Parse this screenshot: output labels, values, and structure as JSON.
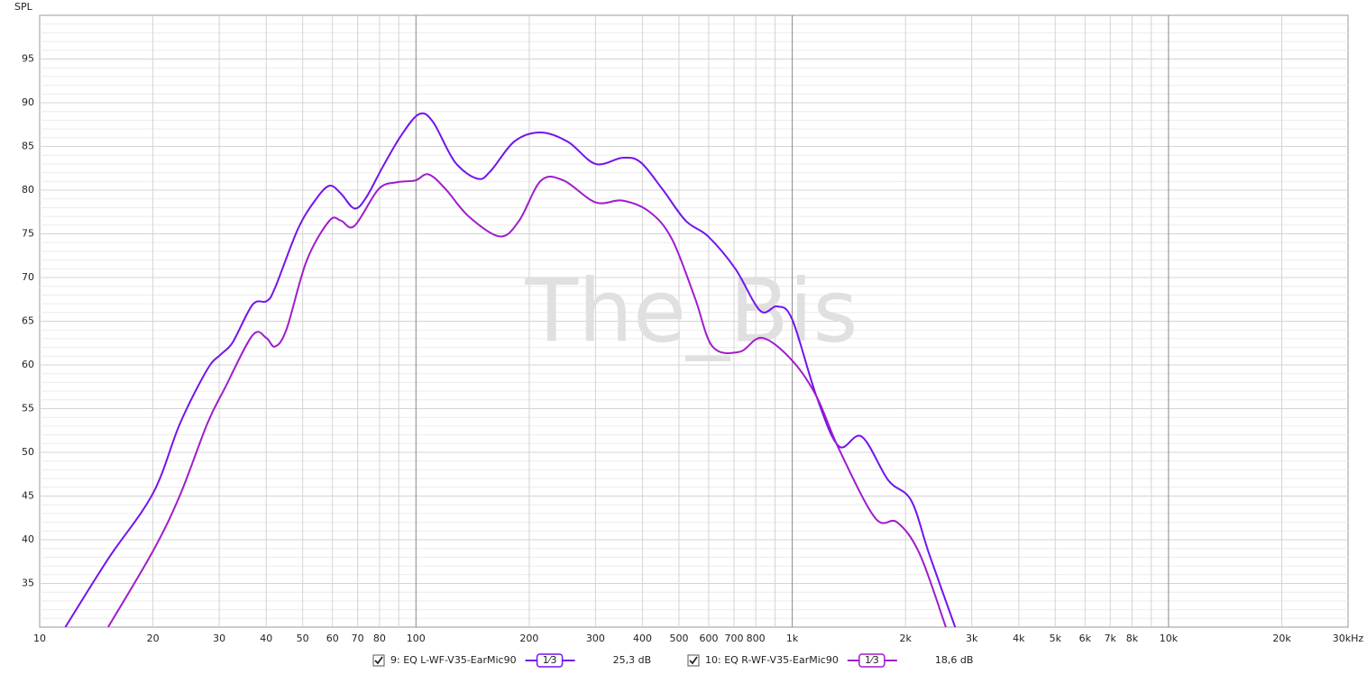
{
  "chart_data": {
    "type": "line",
    "y_label": "SPL",
    "watermark": "The_Bis",
    "log_x": true,
    "grid": true,
    "minor_grid": true,
    "xlim": [
      10,
      30000
    ],
    "ylim": [
      30,
      100
    ],
    "xticks": [
      10,
      20,
      30,
      40,
      50,
      60,
      70,
      80,
      {
        "value": 90,
        "label": null
      },
      100,
      200,
      300,
      400,
      500,
      600,
      700,
      800,
      {
        "value": 900,
        "label": null
      },
      {
        "value": 1000,
        "label": "1k"
      },
      {
        "value": 2000,
        "label": "2k"
      },
      {
        "value": 3000,
        "label": "3k"
      },
      {
        "value": 4000,
        "label": "4k"
      },
      {
        "value": 5000,
        "label": "5k"
      },
      {
        "value": 6000,
        "label": "6k"
      },
      {
        "value": 7000,
        "label": "7k"
      },
      {
        "value": 8000,
        "label": "8k"
      },
      {
        "value": 9000,
        "label": null
      },
      {
        "value": 10000,
        "label": "10k"
      },
      {
        "value": 20000,
        "label": "20k"
      },
      {
        "value": 30000,
        "label": "30kHz"
      }
    ],
    "yticks": [
      35,
      40,
      45,
      50,
      55,
      60,
      65,
      70,
      75,
      80,
      85,
      90,
      95
    ],
    "series": [
      {
        "name": "9: EQ L-WF-V35-EarMic90",
        "color": "#7414ee",
        "smoothing": "1⁄3",
        "level": 25.3,
        "level_label": "25,3 dB",
        "x": [
          11.7,
          15.2,
          20,
          23.6,
          27.9,
          30.3,
          32.6,
          36.8,
          40.1,
          42.2,
          48.5,
          54.1,
          58.9,
          63.2,
          68.6,
          73.6,
          81.7,
          91.5,
          102,
          111,
          127,
          146,
          158,
          183,
          215,
          254,
          300,
          354,
          395,
          452,
          521,
          598,
          706,
          822,
          912,
          1000,
          1160,
          1330,
          1530,
          1800,
          2070,
          2310,
          2710
        ],
        "values": [
          30,
          37.8,
          45.3,
          53.3,
          59.5,
          61.2,
          62.6,
          66.9,
          67.3,
          68.8,
          75.5,
          78.9,
          80.5,
          79.6,
          77.9,
          79.1,
          82.7,
          86.3,
          88.7,
          87.8,
          83.2,
          81.3,
          82.2,
          85.6,
          86.6,
          85.5,
          83,
          83.7,
          83.2,
          80.1,
          76.5,
          74.7,
          71,
          66.2,
          66.7,
          65.2,
          56.4,
          50.7,
          51.8,
          46.8,
          44.5,
          38.4,
          30
        ]
      },
      {
        "name": "10: EQ R-WF-V35-EarMic90",
        "color": "#a01ccc",
        "smoothing": "1⁄3",
        "level": 18.6,
        "level_label": "18,6 dB",
        "x": [
          15.2,
          20,
          23.6,
          27.9,
          31.1,
          36.8,
          40,
          42.2,
          45.3,
          51.2,
          58.9,
          63.2,
          68.6,
          79.5,
          89,
          99.5,
          108,
          120,
          138,
          167,
          188,
          215,
          247,
          300,
          354,
          418,
          479,
          551,
          614,
          724,
          832,
          1000,
          1160,
          1330,
          1660,
          1900,
          2180,
          2560
        ],
        "values": [
          30,
          38.7,
          45.1,
          53.3,
          57.4,
          63.4,
          63.1,
          62.1,
          64.1,
          71.9,
          76.5,
          76.5,
          75.9,
          80.1,
          80.9,
          81.1,
          81.8,
          80.1,
          77,
          74.7,
          76.5,
          81.1,
          81.1,
          78.6,
          78.8,
          77.5,
          74.4,
          67.7,
          62.1,
          61.5,
          63.1,
          60.5,
          56.4,
          50.4,
          42.5,
          42,
          38.4,
          30
        ]
      }
    ]
  }
}
